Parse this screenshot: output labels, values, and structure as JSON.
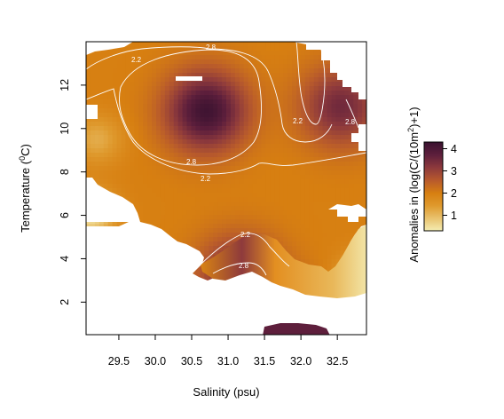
{
  "chart_data": {
    "type": "heatmap",
    "title": "",
    "xlabel": "Salinity (psu)",
    "ylabel_parts": [
      "Temperature (",
      "0",
      "C)"
    ],
    "xlim": [
      29.05,
      32.9
    ],
    "ylim": [
      0.5,
      14.0
    ],
    "xticks": [
      "29.5",
      "30.0",
      "30.5",
      "31.0",
      "31.5",
      "32.0",
      "32.5"
    ],
    "xtick_values": [
      29.5,
      30.0,
      30.5,
      31.0,
      31.5,
      32.0,
      32.5
    ],
    "yticks": [
      "2",
      "4",
      "6",
      "8",
      "10",
      "12"
    ],
    "ytick_values": [
      2,
      4,
      6,
      8,
      10,
      12
    ],
    "colorbar": {
      "label_parts": [
        "Anomalies in (log(C/(10m",
        "2",
        ")+1)"
      ],
      "range": [
        0.3,
        4.3
      ],
      "ticks": [
        "1",
        "2",
        "3",
        "4"
      ],
      "tick_values": [
        1,
        2,
        3,
        4
      ],
      "colors": [
        "#f5eeb4",
        "#e9c36f",
        "#df9a2e",
        "#d77f11",
        "#b85a2c",
        "#8e3a3c",
        "#5e1f3c",
        "#3a1230"
      ]
    },
    "contour_levels": [
      "2.2",
      "2.8"
    ],
    "value_peaks": [
      {
        "salinity": 30.7,
        "temperature": 10.8,
        "value": 4.2
      },
      {
        "salinity": 32.55,
        "temperature": 11.0,
        "value": 3.5
      },
      {
        "salinity": 31.15,
        "temperature": 3.2,
        "value": 3.6
      },
      {
        "salinity": 31.9,
        "temperature": 0.6,
        "value": 4.0
      }
    ],
    "value_lows": [
      {
        "salinity": 29.1,
        "temperature": 6.0,
        "value": 0.5
      },
      {
        "salinity": 32.85,
        "temperature": 3.0,
        "value": 0.7
      },
      {
        "salinity": 29.2,
        "temperature": 9.5,
        "value": 1.2
      }
    ]
  }
}
